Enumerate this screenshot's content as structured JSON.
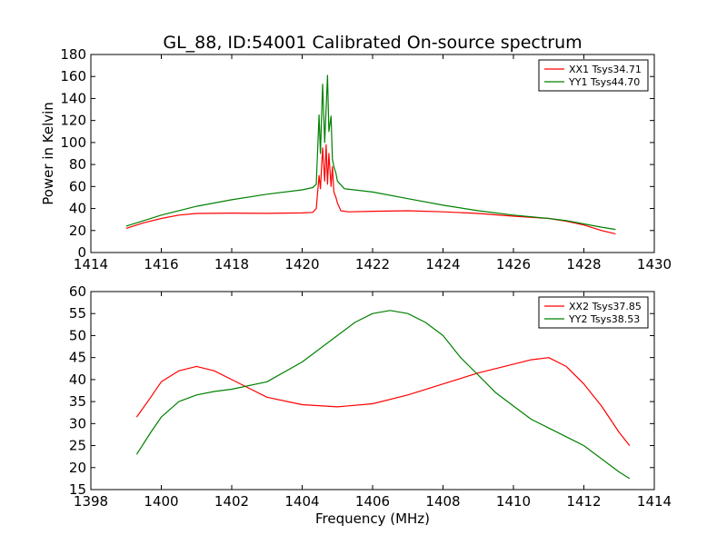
{
  "title": "GL_88, ID:54001 Calibrated On-source spectrum",
  "colors": {
    "xx": "#ff0000",
    "yy": "#008000"
  },
  "chart_data": [
    {
      "type": "line",
      "title": "GL_88, ID:54001 Calibrated On-source spectrum",
      "xlabel": "",
      "ylabel": "Power in Kelvin",
      "xlim": [
        1414,
        1430
      ],
      "ylim": [
        0,
        180
      ],
      "xticks": [
        1414,
        1416,
        1418,
        1420,
        1422,
        1424,
        1426,
        1428,
        1430
      ],
      "yticks": [
        0,
        20,
        40,
        60,
        80,
        100,
        120,
        140,
        160,
        180
      ],
      "legend": "top-right",
      "grid": false,
      "series": [
        {
          "name": "XX1 Tsys34.71",
          "color": "#ff0000",
          "x": [
            1415.0,
            1415.5,
            1416.0,
            1416.5,
            1417.0,
            1418.0,
            1419.0,
            1420.0,
            1420.3,
            1420.4,
            1420.48,
            1420.52,
            1420.58,
            1420.64,
            1420.68,
            1420.72,
            1420.76,
            1420.82,
            1420.86,
            1420.9,
            1420.96,
            1421.0,
            1421.1,
            1421.3,
            1422.0,
            1423.0,
            1424.0,
            1425.0,
            1426.0,
            1427.0,
            1427.5,
            1428.0,
            1428.5,
            1428.9
          ],
          "y": [
            22,
            27,
            31,
            34,
            35.5,
            35.8,
            35.6,
            36,
            36.5,
            40,
            70,
            58,
            95,
            65,
            98,
            62,
            90,
            60,
            78,
            55,
            50,
            45,
            38,
            37,
            37.5,
            38,
            37,
            35.5,
            33,
            31,
            28.5,
            25,
            20,
            17
          ]
        },
        {
          "name": "YY1 Tsys44.70",
          "color": "#008000",
          "x": [
            1415.0,
            1415.5,
            1416.0,
            1417.0,
            1418.0,
            1419.0,
            1420.0,
            1420.3,
            1420.4,
            1420.48,
            1420.52,
            1420.58,
            1420.64,
            1420.72,
            1420.76,
            1420.82,
            1420.86,
            1420.9,
            1420.96,
            1421.0,
            1421.2,
            1422.0,
            1423.0,
            1424.0,
            1425.0,
            1426.0,
            1427.0,
            1427.5,
            1428.0,
            1428.5,
            1428.9
          ],
          "y": [
            24,
            29,
            34,
            42,
            48,
            53,
            57,
            59,
            62,
            125,
            90,
            153,
            100,
            161,
            110,
            124,
            85,
            78,
            72,
            65,
            58,
            55,
            49,
            43,
            38,
            34,
            31,
            29,
            26,
            23,
            21
          ]
        }
      ]
    },
    {
      "type": "line",
      "title": "",
      "xlabel": "Frequency (MHz)",
      "ylabel": "",
      "xlim": [
        1398,
        1414
      ],
      "ylim": [
        15,
        60
      ],
      "xticks": [
        1398,
        1400,
        1402,
        1404,
        1406,
        1408,
        1410,
        1412,
        1414
      ],
      "yticks": [
        15,
        20,
        25,
        30,
        35,
        40,
        45,
        50,
        55,
        60
      ],
      "legend": "top-right",
      "grid": false,
      "series": [
        {
          "name": "XX2 Tsys37.85",
          "color": "#ff0000",
          "x": [
            1399.3,
            1399.7,
            1400.0,
            1400.5,
            1401.0,
            1401.5,
            1402.0,
            1402.5,
            1403.0,
            1404.0,
            1405.0,
            1406.0,
            1407.0,
            1408.0,
            1409.0,
            1410.0,
            1410.5,
            1411.0,
            1411.5,
            1412.0,
            1412.5,
            1413.0,
            1413.3
          ],
          "y": [
            31.5,
            36,
            39.5,
            42,
            43,
            42,
            40,
            38,
            36,
            34.3,
            33.8,
            34.5,
            36.5,
            39,
            41.5,
            43.5,
            44.5,
            45,
            43,
            39,
            34,
            28,
            25
          ]
        },
        {
          "name": "YY2 Tsys38.53",
          "color": "#008000",
          "x": [
            1399.3,
            1399.7,
            1400.0,
            1400.5,
            1401.0,
            1401.5,
            1402.0,
            1403.0,
            1404.0,
            1405.0,
            1405.5,
            1406.0,
            1406.5,
            1407.0,
            1407.5,
            1408.0,
            1408.5,
            1409.0,
            1409.5,
            1410.0,
            1410.5,
            1411.0,
            1412.0,
            1413.0,
            1413.3
          ],
          "y": [
            23,
            28,
            31.5,
            35,
            36.5,
            37.3,
            37.8,
            39.5,
            44,
            50,
            53,
            55,
            55.7,
            55,
            53,
            50,
            45,
            41,
            37,
            34,
            31,
            29,
            25,
            19,
            17.5
          ]
        }
      ]
    }
  ]
}
